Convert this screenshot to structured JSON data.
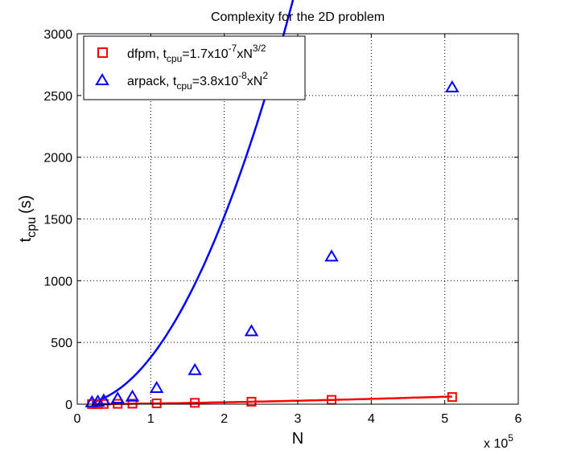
{
  "chart_data": {
    "type": "line",
    "title": "Complexity for the 2D problem",
    "xlabel": "N",
    "ylabel": {
      "base": "t",
      "sub": "cpu",
      "unit": "(s)"
    },
    "x_multiplier": {
      "text": "x 10",
      "exponent": "5"
    },
    "xlim": [
      0,
      600000
    ],
    "ylim": [
      0,
      3000
    ],
    "x_ticks": [
      0,
      100000,
      200000,
      300000,
      400000,
      500000,
      600000
    ],
    "x_tick_labels": [
      "0",
      "1",
      "2",
      "3",
      "4",
      "5",
      "6"
    ],
    "y_ticks": [
      0,
      500,
      1000,
      1500,
      2000,
      2500,
      3000
    ],
    "y_tick_labels": [
      "0",
      "500",
      "1000",
      "1500",
      "2000",
      "2500",
      "3000"
    ],
    "grid": true,
    "legend_position": "top-left",
    "series": [
      {
        "legend": {
          "prefix": "dfpm,  t",
          "sub": "cpu",
          "mid": "=1.7x10",
          "exp1": "-7",
          "mid2": "xN",
          "exp2": "3/2"
        },
        "color": "#ff0000",
        "marker": "square",
        "fit": {
          "coef": 1.7e-07,
          "power": 1.5
        },
        "x": [
          20000,
          28000,
          36000,
          55000,
          75000,
          108000,
          160000,
          237000,
          346000,
          510000
        ],
        "y": [
          1,
          1,
          2,
          3,
          4,
          7,
          11,
          20,
          35,
          58
        ]
      },
      {
        "legend": {
          "prefix": "arpack, t",
          "sub": "cpu",
          "mid": "=3.8x10",
          "exp1": "-8",
          "mid2": "xN",
          "exp2": "2"
        },
        "color": "#0000ff",
        "marker": "triangle",
        "fit": {
          "coef": 3.8e-08,
          "power": 2
        },
        "x": [
          20000,
          28000,
          36000,
          55000,
          75000,
          108000,
          160000,
          237000,
          346000,
          510000
        ],
        "y": [
          15,
          20,
          30,
          45,
          60,
          130,
          275,
          590,
          1195,
          2565
        ]
      }
    ]
  }
}
